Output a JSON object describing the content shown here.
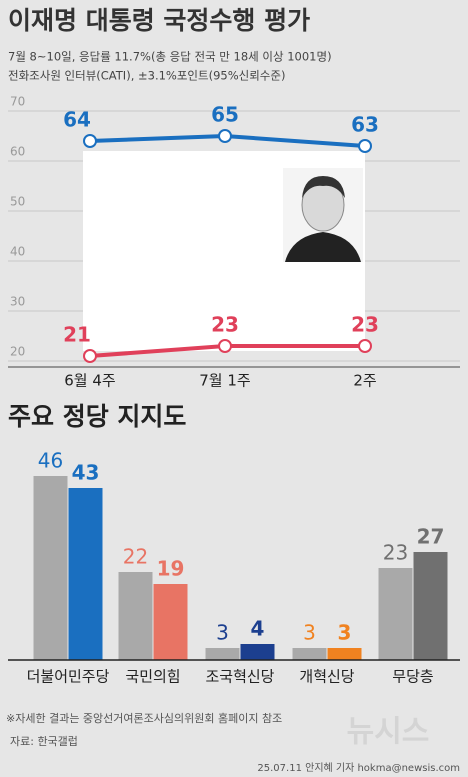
{
  "chart_data": [
    {
      "type": "line",
      "title": "이재명 대통령 국정수행 평가",
      "subtitle": [
        "7월 8~10일, 응답률 11.7%(총 응답 전국 만 18세 이상 1001명)",
        "전화조사원 인터뷰(CATI), ±3.1%포인트(95%신뢰수준)"
      ],
      "categories": [
        "6월 4주",
        "7월 1주",
        "2주"
      ],
      "series": [
        {
          "color": "#1a6fc0",
          "values": [
            64,
            65,
            63
          ]
        },
        {
          "color": "#e0405a",
          "values": [
            21,
            23,
            23
          ]
        }
      ],
      "ylim": [
        20,
        70
      ],
      "yticks": [
        20,
        30,
        40,
        50,
        60,
        70
      ],
      "grid": true
    },
    {
      "type": "bar",
      "title": "주요 정당 지지도",
      "categories": [
        "더불어민주당",
        "국민의힘",
        "조국혁신당",
        "개혁신당",
        "무당층"
      ],
      "series": [
        {
          "colors": [
            "#a9a9a9",
            "#a9a9a9",
            "#a9a9a9",
            "#a9a9a9",
            "#a9a9a9"
          ],
          "values": [
            46,
            22,
            3,
            3,
            23
          ]
        },
        {
          "colors": [
            "#1a6fc0",
            "#e87464",
            "#1c3f8f",
            "#f08220",
            "#707070"
          ],
          "values": [
            43,
            19,
            4,
            3,
            27
          ]
        }
      ],
      "label_colors": [
        "#1a6fc0",
        "#e87464",
        "#1c3f8f",
        "#f08220",
        "#707070"
      ],
      "ylim": [
        0,
        50
      ]
    }
  ],
  "footer": {
    "note": "※자세한 결과는 중앙선거여론조사심의위원회 홈페이지 참조",
    "source": "자료: 한국갤럽",
    "credit": "25.07.11 안지혜 기자 hokma@newsis.com",
    "watermark": "뉴시스"
  }
}
